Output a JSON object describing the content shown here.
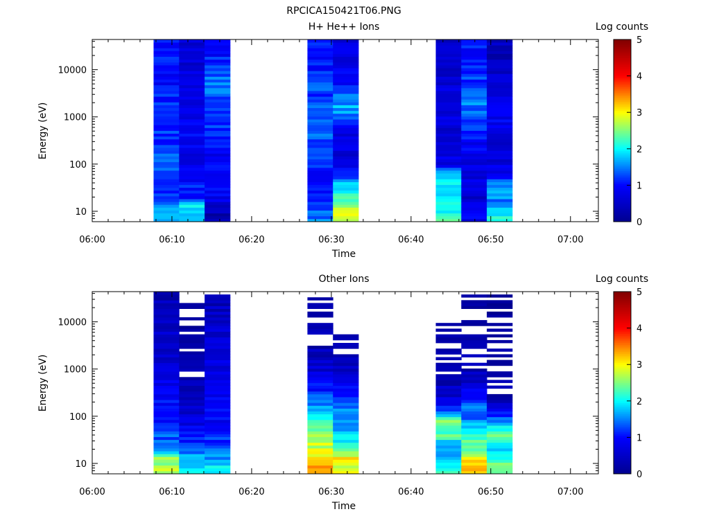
{
  "figure": {
    "title": "RPCICA150421T06.PNG"
  },
  "colorbar": {
    "label": "Log counts",
    "range": [
      0,
      5
    ],
    "ticks": [
      "0",
      "1",
      "2",
      "3",
      "4",
      "5"
    ],
    "colormap": [
      "#00008f",
      "#0000ff",
      "#00ffff",
      "#ffff00",
      "#ff0000",
      "#800000"
    ]
  },
  "chart_data": [
    {
      "type": "heatmap",
      "title": "H+ He++ Ions",
      "xlabel": "Time",
      "ylabel": "Energy (eV)",
      "x_ticks": [
        "06:00",
        "06:10",
        "06:20",
        "06:30",
        "06:40",
        "06:50",
        "07:00"
      ],
      "y_ticks": [
        "10",
        "100",
        "1000",
        "10000"
      ],
      "xlim_minutes": [
        0,
        63.5
      ],
      "ylim_log10": [
        0.78,
        4.64
      ],
      "yscale": "log",
      "colorbar_label": "Log counts",
      "colorbar_range": [
        0,
        5
      ],
      "columns": [
        {
          "t_start_min": 7.7,
          "t_end_min": 10.9,
          "samples": [
            [
              0.9,
              1.8
            ],
            [
              1.3,
              1.3
            ],
            [
              1.7,
              1.2
            ],
            [
              2.2,
              1.3
            ],
            [
              2.7,
              1.2
            ],
            [
              3.2,
              1.1
            ],
            [
              3.8,
              1.0
            ],
            [
              4.3,
              1.0
            ],
            [
              4.6,
              1.0
            ]
          ]
        },
        {
          "t_start_min": 10.9,
          "t_end_min": 14.1,
          "samples": [
            [
              0.9,
              1.6
            ],
            [
              1.1,
              2.0
            ],
            [
              1.3,
              1.1
            ],
            [
              1.7,
              1.0
            ],
            [
              2.2,
              0.8
            ],
            [
              2.7,
              0.9
            ],
            [
              3.2,
              0.8
            ],
            [
              3.8,
              0.7
            ],
            [
              4.3,
              0.6
            ],
            [
              4.6,
              0.6
            ]
          ]
        },
        {
          "t_start_min": 14.1,
          "t_end_min": 17.3,
          "samples": [
            [
              0.9,
              0.3
            ],
            [
              1.3,
              0.9
            ],
            [
              1.7,
              1.0
            ],
            [
              2.2,
              0.9
            ],
            [
              2.7,
              1.1
            ],
            [
              3.2,
              1.3
            ],
            [
              3.8,
              1.5
            ],
            [
              4.3,
              1.0
            ],
            [
              4.6,
              1.0
            ]
          ]
        },
        {
          "t_start_min": 27.0,
          "t_end_min": 30.2,
          "samples": [
            [
              0.9,
              1.5
            ],
            [
              1.3,
              1.2
            ],
            [
              1.7,
              1.0
            ],
            [
              2.2,
              1.2
            ],
            [
              2.7,
              1.4
            ],
            [
              3.2,
              1.3
            ],
            [
              3.8,
              1.2
            ],
            [
              4.3,
              1.0
            ],
            [
              4.6,
              1.0
            ]
          ]
        },
        {
          "t_start_min": 30.2,
          "t_end_min": 33.4,
          "samples": [
            [
              0.9,
              2.8
            ],
            [
              1.2,
              2.5
            ],
            [
              1.5,
              2.0
            ],
            [
              1.8,
              1.0
            ],
            [
              2.2,
              0.7
            ],
            [
              2.7,
              0.8
            ],
            [
              3.2,
              1.7
            ],
            [
              3.8,
              0.9
            ],
            [
              4.3,
              0.7
            ],
            [
              4.6,
              0.7
            ]
          ]
        },
        {
          "t_start_min": 43.1,
          "t_end_min": 46.3,
          "samples": [
            [
              0.9,
              2.2
            ],
            [
              1.1,
              2.0
            ],
            [
              1.4,
              1.6
            ],
            [
              1.7,
              2.0
            ],
            [
              2.0,
              0.8
            ],
            [
              2.7,
              0.6
            ],
            [
              3.2,
              0.8
            ],
            [
              3.8,
              0.6
            ],
            [
              4.3,
              0.5
            ],
            [
              4.6,
              0.5
            ]
          ]
        },
        {
          "t_start_min": 46.3,
          "t_end_min": 49.5,
          "samples": [
            [
              0.9,
              0.9
            ],
            [
              1.3,
              0.6
            ],
            [
              1.7,
              0.7
            ],
            [
              2.2,
              0.8
            ],
            [
              2.7,
              1.1
            ],
            [
              3.2,
              1.5
            ],
            [
              3.8,
              1.2
            ],
            [
              4.3,
              1.1
            ],
            [
              4.6,
              1.0
            ]
          ]
        },
        {
          "t_start_min": 49.5,
          "t_end_min": 52.7,
          "samples": [
            [
              0.9,
              2.0
            ],
            [
              1.2,
              1.4
            ],
            [
              1.5,
              1.8
            ],
            [
              1.8,
              0.9
            ],
            [
              2.2,
              0.6
            ],
            [
              2.7,
              0.8
            ],
            [
              3.2,
              0.9
            ],
            [
              3.8,
              0.6
            ],
            [
              4.3,
              0.4
            ],
            [
              4.6,
              0.4
            ]
          ]
        }
      ]
    },
    {
      "type": "heatmap",
      "title": "Other Ions",
      "xlabel": "Time",
      "ylabel": "Energy (eV)",
      "x_ticks": [
        "06:00",
        "06:10",
        "06:20",
        "06:30",
        "06:40",
        "06:50",
        "07:00"
      ],
      "y_ticks": [
        "10",
        "100",
        "1000",
        "10000"
      ],
      "xlim_minutes": [
        0,
        63.5
      ],
      "ylim_log10": [
        0.78,
        4.64
      ],
      "yscale": "log",
      "colorbar_label": "Log counts",
      "colorbar_range": [
        0,
        5
      ],
      "columns": [
        {
          "t_start_min": 7.7,
          "t_end_min": 10.9,
          "samples": [
            [
              0.9,
              2.7
            ],
            [
              1.1,
              2.6
            ],
            [
              1.3,
              1.6
            ],
            [
              1.7,
              1.2
            ],
            [
              2.2,
              1.0
            ],
            [
              2.7,
              0.8
            ],
            [
              3.2,
              0.6
            ],
            [
              3.8,
              0.5
            ],
            [
              4.3,
              0.4
            ],
            [
              4.6,
              0.3
            ]
          ]
        },
        {
          "t_start_min": 10.9,
          "t_end_min": 14.1,
          "samples": [
            [
              0.9,
              1.9
            ],
            [
              1.1,
              1.7
            ],
            [
              1.3,
              1.4
            ],
            [
              1.6,
              1.0
            ],
            [
              2.0,
              0.6
            ],
            [
              2.5,
              0.5
            ],
            [
              3.0,
              0.2
            ],
            [
              3.5,
              0.0
            ],
            [
              4.3,
              0.0
            ]
          ]
        },
        {
          "t_start_min": 14.1,
          "t_end_min": 17.3,
          "samples": [
            [
              0.9,
              1.9
            ],
            [
              1.2,
              1.5
            ],
            [
              1.6,
              1.1
            ],
            [
              2.0,
              0.9
            ],
            [
              2.5,
              0.8
            ],
            [
              3.0,
              0.7
            ],
            [
              3.5,
              0.7
            ],
            [
              4.0,
              0.5
            ],
            [
              4.5,
              0.4
            ]
          ]
        },
        {
          "t_start_min": 27.0,
          "t_end_min": 30.2,
          "samples": [
            [
              0.9,
              3.4
            ],
            [
              1.1,
              3.1
            ],
            [
              1.3,
              2.8
            ],
            [
              1.6,
              2.7
            ],
            [
              1.9,
              2.3
            ],
            [
              2.2,
              1.6
            ],
            [
              2.6,
              1.0
            ],
            [
              3.0,
              0.6
            ],
            [
              3.5,
              0.3
            ],
            [
              4.0,
              0.2
            ],
            [
              4.45,
              0.1
            ]
          ]
        },
        {
          "t_start_min": 30.2,
          "t_end_min": 33.4,
          "samples": [
            [
              0.9,
              2.9
            ],
            [
              1.1,
              3.1
            ],
            [
              1.3,
              2.2
            ],
            [
              1.6,
              1.8
            ],
            [
              1.9,
              1.6
            ],
            [
              2.2,
              1.4
            ],
            [
              2.6,
              0.9
            ],
            [
              2.9,
              0.6
            ],
            [
              3.3,
              0.3
            ],
            [
              3.7,
              0.1
            ]
          ]
        },
        {
          "t_start_min": 43.1,
          "t_end_min": 46.3,
          "samples": [
            [
              0.9,
              2.2
            ],
            [
              1.1,
              1.9
            ],
            [
              1.3,
              1.5
            ],
            [
              1.6,
              2.3
            ],
            [
              1.9,
              2.6
            ],
            [
              2.1,
              1.3
            ],
            [
              2.4,
              0.6
            ],
            [
              2.8,
              0.3
            ],
            [
              3.2,
              0.2
            ],
            [
              3.7,
              0.1
            ],
            [
              3.9,
              0.0
            ]
          ]
        },
        {
          "t_start_min": 46.3,
          "t_end_min": 49.5,
          "samples": [
            [
              0.9,
              3.1
            ],
            [
              1.1,
              3.0
            ],
            [
              1.3,
              2.5
            ],
            [
              1.6,
              2.2
            ],
            [
              1.9,
              1.5
            ],
            [
              2.2,
              1.4
            ],
            [
              2.6,
              0.7
            ],
            [
              3.0,
              0.3
            ],
            [
              3.5,
              0.2
            ],
            [
              4.0,
              0.1
            ],
            [
              4.3,
              0.0
            ],
            [
              4.5,
              0.1
            ]
          ]
        },
        {
          "t_start_min": 49.5,
          "t_end_min": 52.7,
          "samples": [
            [
              0.9,
              2.6
            ],
            [
              1.1,
              2.0
            ],
            [
              1.3,
              1.8
            ],
            [
              1.6,
              2.4
            ],
            [
              1.9,
              1.5
            ],
            [
              2.2,
              0.7
            ],
            [
              2.5,
              0.2
            ],
            [
              3.0,
              0.1
            ],
            [
              3.6,
              0.1
            ],
            [
              4.1,
              0.0
            ],
            [
              4.5,
              0.0
            ]
          ]
        }
      ]
    }
  ]
}
